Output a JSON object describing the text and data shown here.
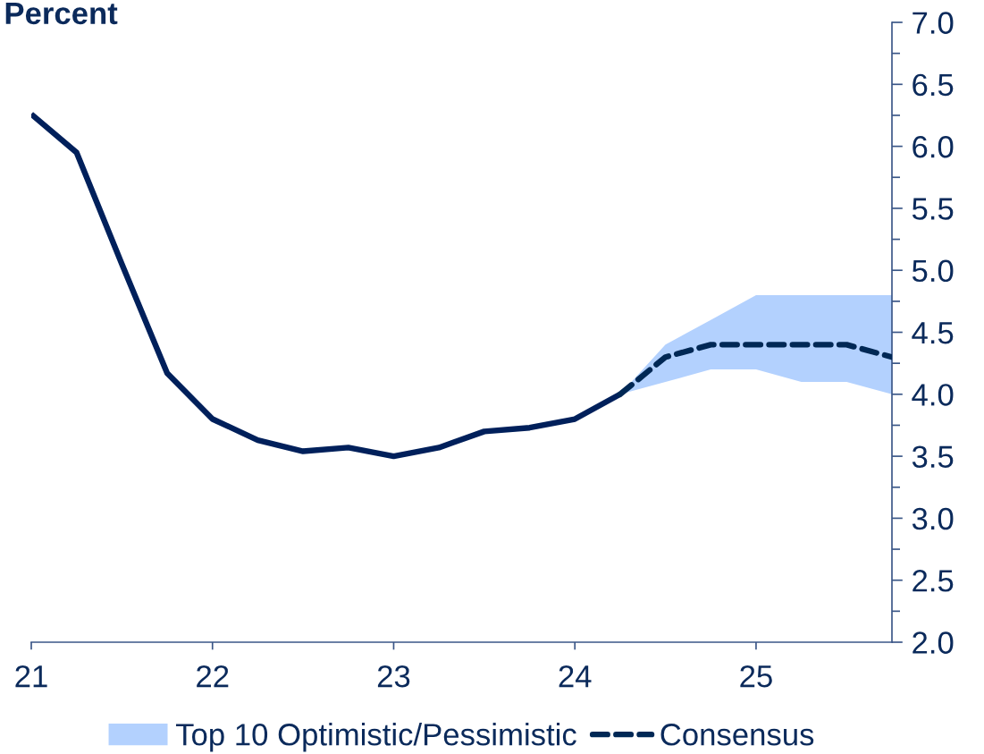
{
  "chart_data": {
    "type": "line",
    "title": "Percent",
    "series": [
      {
        "type": "line",
        "color": "#00205b",
        "x": [
          21,
          21.25,
          21.5,
          21.75,
          22,
          22.25,
          22.5,
          22.75,
          23,
          23.25,
          23.5,
          23.75,
          24,
          24.25
        ],
        "values": [
          6.26,
          5.95,
          5.05,
          4.17,
          3.8,
          3.63,
          3.54,
          3.57,
          3.5,
          3.57,
          3.7,
          3.73,
          3.8,
          4.0
        ]
      },
      {
        "type": "area",
        "name": "Top 10 Optimistic/Pessimistic",
        "color": "#b3d1fe",
        "x": [
          24.25,
          24.5,
          24.75,
          25,
          25.25,
          25.5,
          25.75
        ],
        "values": [
          null,
          null,
          null,
          null,
          null,
          null,
          null
        ],
        "lower": [
          4.0,
          4.1,
          4.2,
          4.2,
          4.1,
          4.1,
          4.0
        ],
        "upper": [
          4.0,
          4.4,
          4.6,
          4.8,
          4.8,
          4.8,
          4.8
        ]
      },
      {
        "type": "line",
        "name": "Consensus",
        "color": "#002855",
        "line_style": "dashed",
        "x": [
          24.25,
          24.5,
          24.75,
          25,
          25.25,
          25.5,
          25.75
        ],
        "values": [
          4.0,
          4.3,
          4.4,
          4.4,
          4.4,
          4.4,
          4.3
        ]
      }
    ],
    "xlim": [
      21,
      25.75
    ],
    "xticks": [
      21,
      22,
      23,
      24,
      25
    ],
    "ylim": [
      2,
      7
    ],
    "yticks": [
      {
        "value": 2,
        "label": "2.0"
      },
      {
        "value": 2.25,
        "label": null
      },
      {
        "value": 2.5,
        "label": "2.5"
      },
      {
        "value": 2.75,
        "label": null
      },
      {
        "value": 3,
        "label": "3.0"
      },
      {
        "value": 3.25,
        "label": null
      },
      {
        "value": 3.5,
        "label": "3.5"
      },
      {
        "value": 3.75,
        "label": null
      },
      {
        "value": 4,
        "label": "4.0"
      },
      {
        "value": 4.25,
        "label": null
      },
      {
        "value": 4.5,
        "label": "4.5"
      },
      {
        "value": 4.75,
        "label": null
      },
      {
        "value": 5,
        "label": "5.0"
      },
      {
        "value": 5.25,
        "label": null
      },
      {
        "value": 5.5,
        "label": "5.5"
      },
      {
        "value": 5.75,
        "label": null
      },
      {
        "value": 6,
        "label": "6.0"
      },
      {
        "value": 6.25,
        "label": null
      },
      {
        "value": 6.5,
        "label": "6.5"
      },
      {
        "value": 6.75,
        "label": null
      },
      {
        "value": 7,
        "label": "7.0"
      }
    ],
    "legend": "bottom"
  }
}
